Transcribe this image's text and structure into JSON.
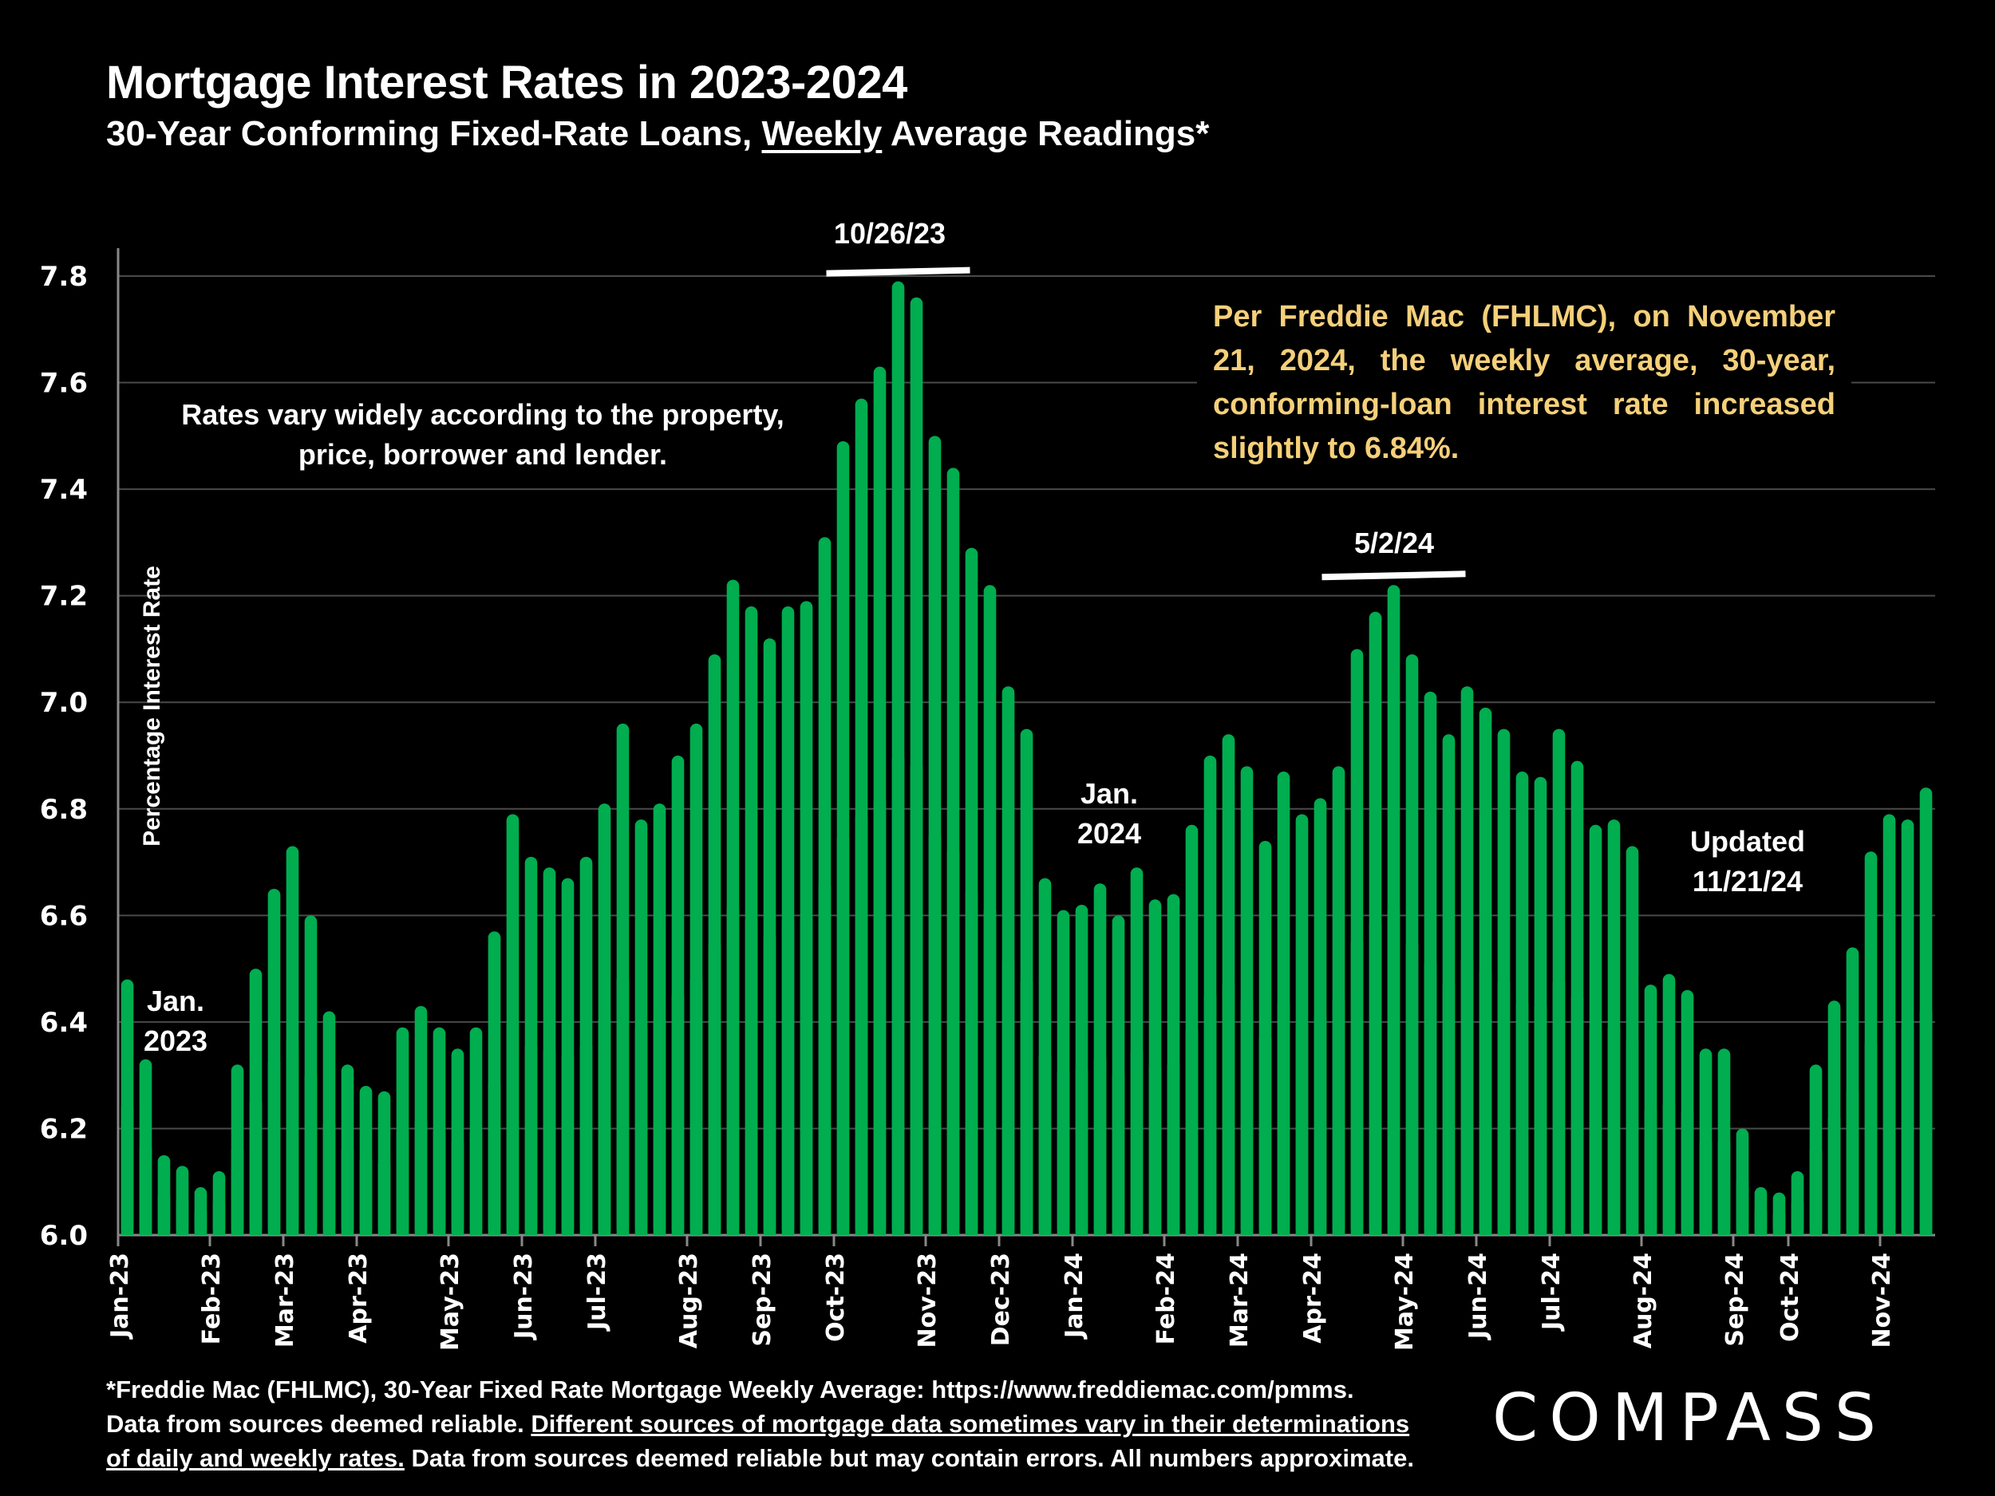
{
  "header": {
    "title": "Mortgage Interest Rates in 2023-2024",
    "subtitle_pre": "30-Year Conforming Fixed-Rate Loans, ",
    "subtitle_underlined": "Weekly",
    "subtitle_post": " Average Readings*"
  },
  "annotations": {
    "note_left_line1": "Rates vary widely according to the property,",
    "note_left_line2": "price, borrower and lender.",
    "jan2023_line1": "Jan.",
    "jan2023_line2": "2023",
    "jan2024_line1": "Jan.",
    "jan2024_line2": "2024",
    "peak1": "10/26/23",
    "peak2": "5/2/24",
    "updated_line1": "Updated",
    "updated_line2": "11/21/24",
    "callout": "Per Freddie Mac (FHLMC), on November 21, 2024, the weekly average, 30-year, conforming-loan interest rate increased slightly to 6.84%."
  },
  "footer": {
    "line1": "*Freddie Mac (FHLMC), 30-Year Fixed Rate Mortgage Weekly Average:  https://www.freddiemac.com/pmms.",
    "line2_pre": "Data from sources deemed reliable. ",
    "line2_underlined": "Different sources of mortgage data sometimes vary in their determinations",
    "line3_underlined": "of daily and weekly rates.",
    "line3_post": " Data from sources deemed reliable but may contain errors. All numbers approximate.",
    "logo": "COMPASS"
  },
  "colors": {
    "bar": "#00ad4f",
    "grid": "#4a4a4a",
    "callout_text": "#f5d07a",
    "background": "#000000"
  },
  "chart_data": {
    "type": "bar",
    "title": "Mortgage Interest Rates in 2023-2024",
    "xlabel": "",
    "ylabel": "Percentage Interest  Rate",
    "ylim": [
      6.0,
      7.8
    ],
    "yticks": [
      "6.0",
      "6.2",
      "6.4",
      "6.6",
      "6.8",
      "7.0",
      "7.2",
      "7.4",
      "7.6",
      "7.8"
    ],
    "grid": true,
    "month_labels": [
      "Jan-23",
      "Feb-23",
      "Mar-23",
      "Apr-23",
      "May-23",
      "Jun-23",
      "Jul-23",
      "Aug-23",
      "Sep-23",
      "Oct-23",
      "Nov-23",
      "Dec-23",
      "Jan-24",
      "Feb-24",
      "Mar-24",
      "Apr-24",
      "May-24",
      "Jun-24",
      "Jul-24",
      "Aug-24",
      "Sep-24",
      "Oct-24",
      "Nov-24"
    ],
    "month_start_index": [
      0,
      5,
      9,
      13,
      18,
      22,
      26,
      31,
      35,
      39,
      44,
      48,
      52,
      57,
      61,
      65,
      70,
      74,
      78,
      83,
      88,
      91,
      96
    ],
    "series": [
      {
        "name": "30-Year Fixed Rate Weekly Average",
        "values": [
          6.48,
          6.33,
          6.15,
          6.13,
          6.09,
          6.12,
          6.32,
          6.5,
          6.65,
          6.73,
          6.6,
          6.42,
          6.32,
          6.28,
          6.27,
          6.39,
          6.43,
          6.39,
          6.35,
          6.39,
          6.57,
          6.79,
          6.71,
          6.69,
          6.67,
          6.71,
          6.81,
          6.96,
          6.78,
          6.81,
          6.9,
          6.96,
          7.09,
          7.23,
          7.18,
          7.12,
          7.18,
          7.19,
          7.31,
          7.49,
          7.57,
          7.63,
          7.79,
          7.76,
          7.5,
          7.44,
          7.29,
          7.22,
          7.03,
          6.95,
          6.67,
          6.61,
          6.62,
          6.66,
          6.6,
          6.69,
          6.63,
          6.64,
          6.77,
          6.9,
          6.94,
          6.88,
          6.74,
          6.87,
          6.79,
          6.82,
          6.88,
          7.1,
          7.17,
          7.22,
          7.09,
          7.02,
          6.94,
          7.03,
          6.99,
          6.95,
          6.87,
          6.86,
          6.95,
          6.89,
          6.77,
          6.78,
          6.73,
          6.47,
          6.49,
          6.46,
          6.35,
          6.35,
          6.2,
          6.09,
          6.08,
          6.12,
          6.32,
          6.44,
          6.54,
          6.72,
          6.79,
          6.78,
          6.84
        ]
      }
    ]
  }
}
